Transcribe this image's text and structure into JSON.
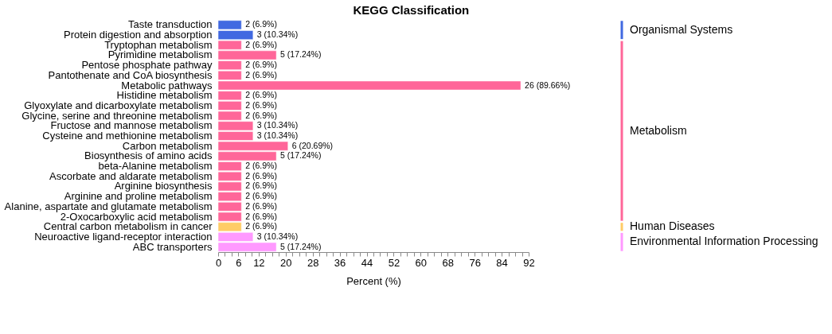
{
  "chart_data": {
    "type": "bar",
    "orientation": "horizontal",
    "title": "KEGG Classification",
    "xlabel": "Percent (%)",
    "categories": [
      "Taste transduction",
      "Protein digestion and absorption",
      "Tryptophan metabolism",
      "Pyrimidine metabolism",
      "Pentose phosphate pathway",
      "Pantothenate and CoA biosynthesis",
      "Metabolic pathways",
      "Histidine metabolism",
      "Glyoxylate and dicarboxylate metabolism",
      "Glycine, serine and threonine metabolism",
      "Fructose and mannose metabolism",
      "Cysteine and methionine metabolism",
      "Carbon metabolism",
      "Biosynthesis of amino acids",
      "beta-Alanine metabolism",
      "Ascorbate and aldarate metabolism",
      "Arginine biosynthesis",
      "Arginine and proline metabolism",
      "Alanine, aspartate and glutamate metabolism",
      "2-Oxocarboxylic acid metabolism",
      "Central carbon metabolism in cancer",
      "Neuroactive ligand-receptor interaction",
      "ABC transporters"
    ],
    "series": [
      {
        "name": "Organismal Systems",
        "color": "#4169e1",
        "values": [
          6.9,
          10.34,
          null,
          null,
          null,
          null,
          null,
          null,
          null,
          null,
          null,
          null,
          null,
          null,
          null,
          null,
          null,
          null,
          null,
          null,
          null,
          null,
          null
        ],
        "value_labels": [
          "2 (6.9%)",
          "3 (10.34%)",
          null,
          null,
          null,
          null,
          null,
          null,
          null,
          null,
          null,
          null,
          null,
          null,
          null,
          null,
          null,
          null,
          null,
          null,
          null,
          null,
          null
        ]
      },
      {
        "name": "Metabolism",
        "color": "#ff6699",
        "values": [
          null,
          null,
          6.9,
          17.24,
          6.9,
          6.9,
          89.66,
          6.9,
          6.9,
          6.9,
          10.34,
          10.34,
          20.69,
          17.24,
          6.9,
          6.9,
          6.9,
          6.9,
          6.9,
          6.9,
          null,
          null,
          null
        ],
        "value_labels": [
          null,
          null,
          "2 (6.9%)",
          "5 (17.24%)",
          "2 (6.9%)",
          "2 (6.9%)",
          "26 (89.66%)",
          "2 (6.9%)",
          "2 (6.9%)",
          "2 (6.9%)",
          "3 (10.34%)",
          "3 (10.34%)",
          "6 (20.69%)",
          "5 (17.24%)",
          "2 (6.9%)",
          "2 (6.9%)",
          "2 (6.9%)",
          "2 (6.9%)",
          "2 (6.9%)",
          "2 (6.9%)",
          null,
          null,
          null
        ]
      },
      {
        "name": "Human Diseases",
        "color": "#ffcc66",
        "values": [
          null,
          null,
          null,
          null,
          null,
          null,
          null,
          null,
          null,
          null,
          null,
          null,
          null,
          null,
          null,
          null,
          null,
          null,
          null,
          null,
          6.9,
          null,
          null
        ],
        "value_labels": [
          null,
          null,
          null,
          null,
          null,
          null,
          null,
          null,
          null,
          null,
          null,
          null,
          null,
          null,
          null,
          null,
          null,
          null,
          null,
          null,
          "2 (6.9%)",
          null,
          null
        ]
      },
      {
        "name": "Environmental Information Processing",
        "color": "#ff99ff",
        "values": [
          null,
          null,
          null,
          null,
          null,
          null,
          null,
          null,
          null,
          null,
          null,
          null,
          null,
          null,
          null,
          null,
          null,
          null,
          null,
          null,
          null,
          10.34,
          17.24
        ],
        "value_labels": [
          null,
          null,
          null,
          null,
          null,
          null,
          null,
          null,
          null,
          null,
          null,
          null,
          null,
          null,
          null,
          null,
          null,
          null,
          null,
          null,
          null,
          "3 (10.34%)",
          "5 (17.24%)"
        ]
      }
    ],
    "xlim": [
      0,
      92
    ],
    "xticks": [
      0,
      {
        "value": 2,
        "label": null
      },
      {
        "value": 4,
        "label": null
      },
      6,
      {
        "value": 8,
        "label": null
      },
      {
        "value": 10,
        "label": null
      },
      12,
      {
        "value": 14,
        "label": null
      },
      {
        "value": 16,
        "label": null
      },
      {
        "value": 18,
        "label": null
      },
      20,
      {
        "value": 22,
        "label": null
      },
      {
        "value": 24,
        "label": null
      },
      {
        "value": 26,
        "label": null
      },
      28,
      {
        "value": 30,
        "label": null
      },
      {
        "value": 32,
        "label": null
      },
      {
        "value": 34,
        "label": null
      },
      36,
      {
        "value": 38,
        "label": null
      },
      {
        "value": 40,
        "label": null
      },
      {
        "value": 42,
        "label": null
      },
      44,
      {
        "value": 46,
        "label": null
      },
      {
        "value": 48,
        "label": null
      },
      {
        "value": 50,
        "label": null
      },
      52,
      {
        "value": 54,
        "label": null
      },
      {
        "value": 56,
        "label": null
      },
      {
        "value": 58,
        "label": null
      },
      60,
      {
        "value": 62,
        "label": null
      },
      {
        "value": 64,
        "label": null
      },
      {
        "value": 66,
        "label": null
      },
      68,
      {
        "value": 70,
        "label": null
      },
      {
        "value": 72,
        "label": null
      },
      {
        "value": 74,
        "label": null
      },
      76,
      {
        "value": 78,
        "label": null
      },
      {
        "value": 80,
        "label": null
      },
      {
        "value": 82,
        "label": null
      },
      84,
      {
        "value": 86,
        "label": null
      },
      {
        "value": 88,
        "label": null
      },
      {
        "value": 90,
        "label": null
      },
      92
    ],
    "grid": false,
    "legend": "right"
  }
}
